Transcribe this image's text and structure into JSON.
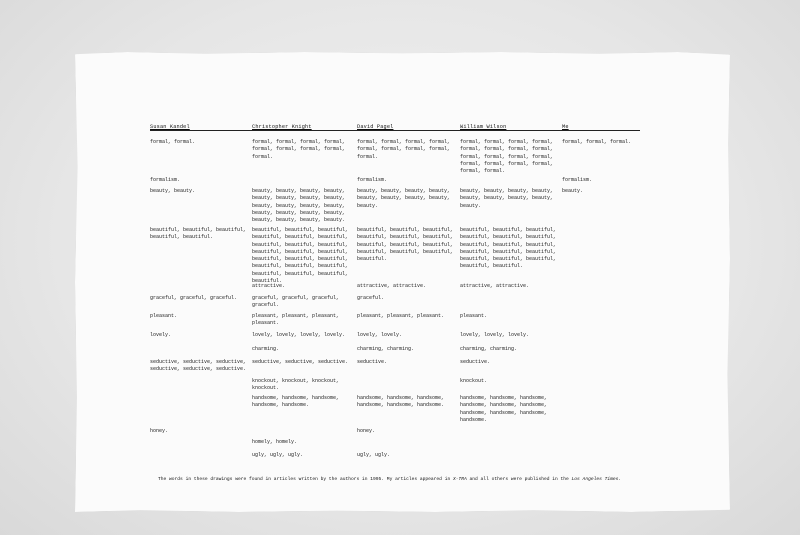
{
  "columns": [
    "Susan Kandel",
    "Christopher Knight",
    "David Pagel",
    "William Wilson",
    "Me"
  ],
  "rows": [
    {
      "word": "formal",
      "cells": [
        "formal, formal.",
        "formal, formal, formal, formal, formal, formal, formal, formal, formal.",
        "formal, formal, formal, formal, formal, formal, formal, formal, formal.",
        "formal, formal, formal, formal, formal, formal, formal, formal, formal, formal, formal, formal, formal, formal, formal, formal, formal, formal.",
        "formal, formal, formal."
      ]
    },
    {
      "word": "formalism",
      "cells": [
        "formalism.",
        "",
        "formalism.",
        "",
        "formalism."
      ]
    },
    {
      "word": "beauty",
      "cells": [
        "beauty, beauty.",
        "beauty, beauty, beauty, beauty, beauty, beauty, beauty, beauty, beauty, beauty, beauty, beauty, beauty, beauty, beauty, beauty, beauty, beauty, beauty, beauty.",
        "beauty, beauty, beauty, beauty, beauty, beauty, beauty, beauty, beauty.",
        "beauty, beauty, beauty, beauty, beauty, beauty, beauty, beauty, beauty.",
        "beauty."
      ]
    },
    {
      "word": "beautiful",
      "cells": [
        "beautiful, beautiful, beautiful, beautiful, beautiful.",
        "beautiful, beautiful, beautiful, beautiful, beautiful, beautiful, beautiful, beautiful, beautiful, beautiful, beautiful, beautiful, beautiful, beautiful, beautiful, beautiful, beautiful, beautiful, beautiful, beautiful, beautiful, beautiful.",
        "beautiful, beautiful, beautiful, beautiful, beautiful, beautiful, beautiful, beautiful, beautiful, beautiful, beautiful, beautiful, beautiful.",
        "beautiful, beautiful, beautiful, beautiful, beautiful, beautiful, beautiful, beautiful, beautiful, beautiful, beautiful, beautiful, beautiful, beautiful, beautiful, beautiful, beautiful.",
        ""
      ]
    },
    {
      "word": "attractive",
      "cells": [
        "",
        "attractive.",
        "attractive, attractive.",
        "attractive, attractive.",
        ""
      ]
    },
    {
      "word": "graceful",
      "cells": [
        "graceful, graceful, graceful.",
        "graceful, graceful, graceful, graceful.",
        "graceful.",
        "",
        ""
      ]
    },
    {
      "word": "pleasant",
      "cells": [
        "pleasant.",
        "pleasant, pleasant, pleasant, pleasant.",
        "pleasant, pleasant, pleasant.",
        "pleasant.",
        ""
      ]
    },
    {
      "word": "lovely",
      "cells": [
        "lovely.",
        "lovely, lovely, lovely, lovely.",
        "lovely, lovely.",
        "lovely, lovely, lovely.",
        ""
      ]
    },
    {
      "word": "charming",
      "cells": [
        "",
        "charming.",
        "charming, charming.",
        "charming, charming.",
        ""
      ]
    },
    {
      "word": "seductive",
      "cells": [
        "seductive, seductive, seductive, seductive, seductive, seductive.",
        "seductive, seductive, seductive.",
        "seductive.",
        "seductive.",
        ""
      ]
    },
    {
      "word": "knockout",
      "cells": [
        "",
        "knockout, knockout, knockout, knockout.",
        "",
        "knockout.",
        ""
      ]
    },
    {
      "word": "handsome",
      "cells": [
        "",
        "handsome, handsome, handsome, handsome, handsome.",
        "handsome, handsome, handsome, handsome, handsome, handsome.",
        "handsome, handsome, handsome, handsome, handsome, handsome, handsome, handsome, handsome, handsome.",
        ""
      ]
    },
    {
      "word": "honey",
      "cells": [
        "honey.",
        "",
        "honey.",
        "",
        ""
      ]
    },
    {
      "word": "homely",
      "cells": [
        "",
        "homely, homely.",
        "",
        "",
        ""
      ]
    },
    {
      "word": "ugly",
      "cells": [
        "",
        "ugly, ugly, ugly.",
        "ugly, ugly.",
        "",
        ""
      ]
    }
  ],
  "footnote": {
    "before": "The words in these drawings were found in articles written by the authors in 1995. My articles appeared in ",
    "pub1": "X-TRA",
    "middle": " and all others were published in the ",
    "pub2": "Los Angeles Times",
    "after": "."
  }
}
